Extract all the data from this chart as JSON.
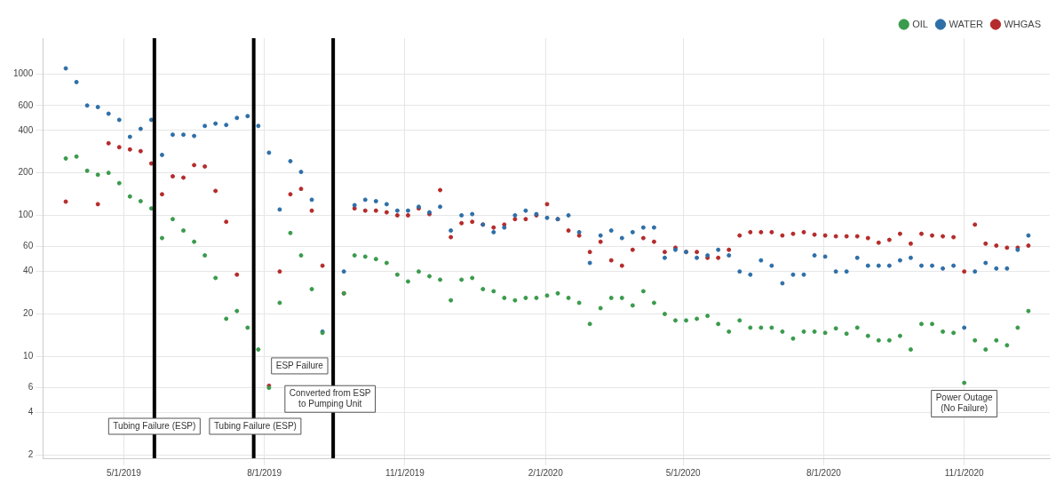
{
  "chart_data": {
    "type": "scatter",
    "x": [
      "2019-03-24",
      "2019-03-31",
      "2019-04-07",
      "2019-04-14",
      "2019-04-21",
      "2019-04-28",
      "2019-05-05",
      "2019-05-12",
      "2019-05-19",
      "2019-05-26",
      "2019-06-02",
      "2019-06-09",
      "2019-06-16",
      "2019-06-23",
      "2019-06-30",
      "2019-07-07",
      "2019-07-14",
      "2019-07-21",
      "2019-07-28",
      "2019-08-04",
      "2019-08-11",
      "2019-08-18",
      "2019-08-25",
      "2019-09-01",
      "2019-09-08",
      "2019-09-15",
      "2019-09-22",
      "2019-09-29",
      "2019-10-06",
      "2019-10-13",
      "2019-10-20",
      "2019-10-27",
      "2019-11-03",
      "2019-11-10",
      "2019-11-17",
      "2019-11-24",
      "2019-12-01",
      "2019-12-08",
      "2019-12-15",
      "2019-12-22",
      "2019-12-29",
      "2020-01-05",
      "2020-01-12",
      "2020-01-19",
      "2020-01-26",
      "2020-02-02",
      "2020-02-09",
      "2020-02-16",
      "2020-02-23",
      "2020-03-01",
      "2020-03-08",
      "2020-03-15",
      "2020-03-22",
      "2020-03-29",
      "2020-04-05",
      "2020-04-12",
      "2020-04-19",
      "2020-04-26",
      "2020-05-03",
      "2020-05-10",
      "2020-05-17",
      "2020-05-24",
      "2020-05-31",
      "2020-06-07",
      "2020-06-14",
      "2020-06-21",
      "2020-06-28",
      "2020-07-05",
      "2020-07-12",
      "2020-07-19",
      "2020-07-26",
      "2020-08-02",
      "2020-08-09",
      "2020-08-16",
      "2020-08-23",
      "2020-08-30",
      "2020-09-06",
      "2020-09-13",
      "2020-09-20",
      "2020-09-27",
      "2020-10-04",
      "2020-10-11",
      "2020-10-18",
      "2020-10-25",
      "2020-11-01",
      "2020-11-08",
      "2020-11-15",
      "2020-11-22",
      "2020-11-29",
      "2020-12-06",
      "2020-12-13"
    ],
    "series": [
      {
        "name": "OIL",
        "color": "#3a9b4c",
        "values": [
          253,
          261,
          207,
          194,
          200,
          169,
          136,
          126,
          112,
          69,
          94,
          78,
          65,
          52,
          36,
          18.5,
          21,
          16,
          11.2,
          6,
          24,
          75,
          52,
          30,
          14.7,
          null,
          28,
          52,
          51,
          49,
          46,
          38,
          34,
          40,
          37,
          35,
          25,
          35,
          36,
          30,
          29,
          26,
          25,
          26,
          26,
          27,
          28,
          26,
          24,
          17,
          22,
          26,
          26,
          23,
          29,
          24,
          20,
          18,
          18,
          18.5,
          19.4,
          17,
          15,
          18,
          16,
          16,
          16,
          15,
          13.4,
          15,
          15,
          14.7,
          15.8,
          14.5,
          16,
          14,
          13,
          13,
          14,
          11.2,
          17,
          17,
          15,
          14.7,
          6.5,
          13,
          11.2,
          13,
          12,
          16,
          21
        ]
      },
      {
        "name": "WATER",
        "color": "#2e6fa8",
        "values": [
          1100,
          880,
          600,
          585,
          525,
          475,
          360,
          410,
          475,
          268,
          373,
          373,
          365,
          430,
          447,
          437,
          490,
          505,
          430,
          278,
          110,
          242,
          203,
          129,
          15,
          null,
          40,
          118,
          129,
          126,
          120,
          108,
          108,
          115,
          105,
          115,
          78,
          100,
          102,
          86,
          76,
          82,
          100,
          108,
          102,
          96,
          94,
          100,
          76,
          46,
          72,
          78,
          69,
          76,
          82,
          82,
          50,
          57,
          55,
          50,
          52,
          57,
          52,
          40,
          38,
          48,
          44,
          33,
          38,
          38,
          52,
          51,
          40,
          40,
          50,
          44,
          44,
          44,
          48,
          50,
          44,
          44,
          42,
          44,
          16,
          40,
          46,
          42,
          42,
          57,
          72
        ]
      },
      {
        "name": "WHGAS",
        "color": "#b52b2b",
        "values": [
          125,
          null,
          null,
          120,
          324,
          304,
          293,
          285,
          233,
          141,
          189,
          185,
          227,
          222,
          149,
          90,
          38,
          null,
          null,
          6.2,
          40,
          141,
          154,
          108,
          44,
          null,
          28,
          112,
          108,
          108,
          105,
          100,
          100,
          112,
          102,
          151,
          70,
          88,
          90,
          86,
          82,
          86,
          94,
          94,
          100,
          120,
          94,
          78,
          72,
          55,
          65,
          48,
          44,
          57,
          69,
          65,
          55,
          59,
          55,
          55,
          50,
          50,
          57,
          72,
          76,
          76,
          76,
          72,
          74,
          76,
          73,
          72,
          71,
          71,
          71,
          69,
          64,
          67,
          74,
          63,
          74,
          72,
          71,
          70,
          40,
          86,
          63,
          61,
          59,
          59,
          61
        ]
      }
    ],
    "xlim": [
      "2019-03-09",
      "2020-12-27"
    ],
    "xticks": [
      {
        "value": "2019-05-01",
        "label": "5/1/2019"
      },
      {
        "value": "2019-08-01",
        "label": "8/1/2019"
      },
      {
        "value": "2019-11-01",
        "label": "11/1/2019"
      },
      {
        "value": "2020-02-01",
        "label": "2/1/2020"
      },
      {
        "value": "2020-05-01",
        "label": "5/1/2020"
      },
      {
        "value": "2020-08-01",
        "label": "8/1/2020"
      },
      {
        "value": "2020-11-01",
        "label": "11/1/2020"
      }
    ],
    "ylim": [
      1.9,
      1800
    ],
    "yticks": [
      2,
      4,
      6,
      10,
      20,
      40,
      60,
      100,
      200,
      400,
      600,
      1000
    ],
    "log": "y",
    "grid": true,
    "legend": "top right",
    "marker": "circle",
    "ref_lines": [
      {
        "axis": "x",
        "value": "2019-05-21",
        "color": "#000000"
      },
      {
        "axis": "x",
        "value": "2019-07-25",
        "color": "#000000"
      },
      {
        "axis": "x",
        "value": "2019-09-15",
        "color": "#000000"
      }
    ],
    "annotations": [
      {
        "text": "Tubing Failure (ESP)",
        "x": "2019-05-21",
        "y": 3.2
      },
      {
        "text": "Tubing Failure (ESP)",
        "x": "2019-07-26",
        "y": 3.2
      },
      "ESP Failure",
      {
        "text": "Converted from ESP\nto Pumping Unit",
        "x": "2019-09-13",
        "y": 5
      },
      "Power Outage\n(No Failure)"
    ]
  }
}
